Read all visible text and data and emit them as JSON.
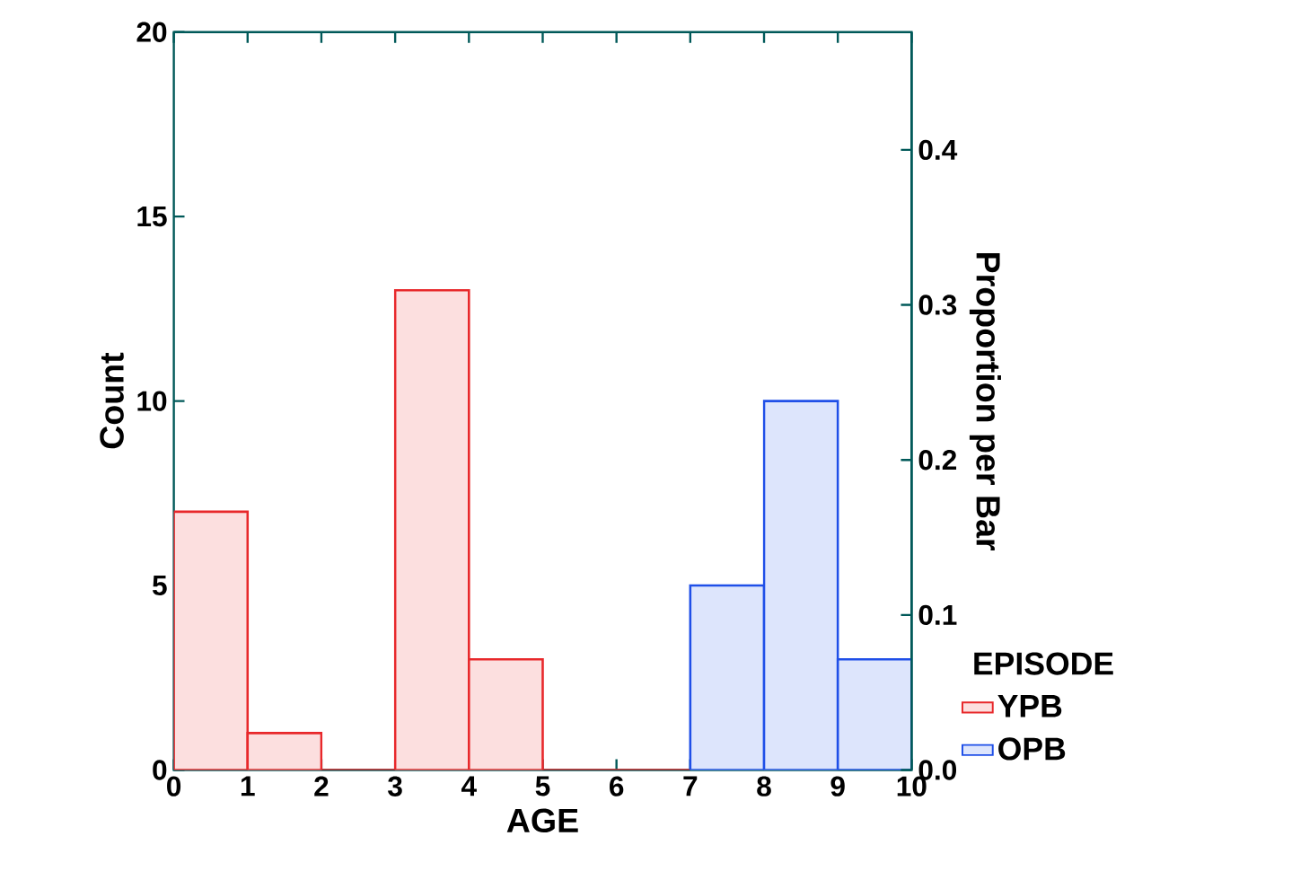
{
  "chart_data": {
    "type": "histogram",
    "xlabel": "AGE",
    "ylabel": "Count",
    "y2label": "Proportion per Bar",
    "legend_title": "EPISODE",
    "legend": "right",
    "bins": [
      0,
      1,
      2,
      3,
      4,
      5,
      6,
      7,
      8,
      9,
      10
    ],
    "series": [
      {
        "name": "YPB",
        "color": "#e8282b",
        "values": [
          7,
          1,
          0,
          13,
          3,
          0,
          0,
          null,
          null,
          null
        ]
      },
      {
        "name": "OPB",
        "color": "#1f4fe8",
        "values": [
          null,
          null,
          null,
          null,
          null,
          null,
          null,
          5,
          10,
          3
        ]
      }
    ],
    "xlim": [
      0,
      10
    ],
    "xticks": [
      0,
      1,
      2,
      3,
      4,
      5,
      6,
      7,
      8,
      9,
      10
    ],
    "ylim": [
      0,
      20
    ],
    "yticks": [
      0,
      5,
      10,
      15,
      20
    ],
    "y2lim": [
      0,
      0.476
    ],
    "y2ticks": [
      {
        "value": 0,
        "label": "0.0"
      },
      0.1,
      0.2,
      0.3,
      0.4
    ]
  }
}
